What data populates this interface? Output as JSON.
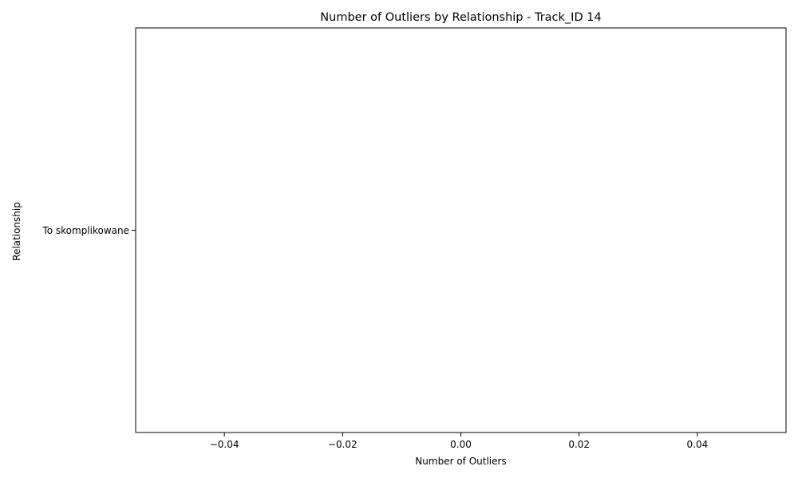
{
  "chart_data": {
    "type": "bar",
    "orientation": "horizontal",
    "title": "Number of Outliers by Relationship - Track_ID 14",
    "xlabel": "Number of Outliers",
    "ylabel": "Relationship",
    "categories": [
      "To skomplikowane"
    ],
    "values": [
      0
    ],
    "xlim": [
      -0.055,
      0.055
    ],
    "xticks": [
      -0.04,
      -0.02,
      0.0,
      0.02,
      0.04
    ],
    "xtick_labels": [
      "−0.04",
      "−0.02",
      "0.00",
      "0.02",
      "0.04"
    ],
    "grid": false,
    "colors": {
      "axes": "#000000",
      "background": "#ffffff",
      "bar": "#1f77b4"
    }
  }
}
